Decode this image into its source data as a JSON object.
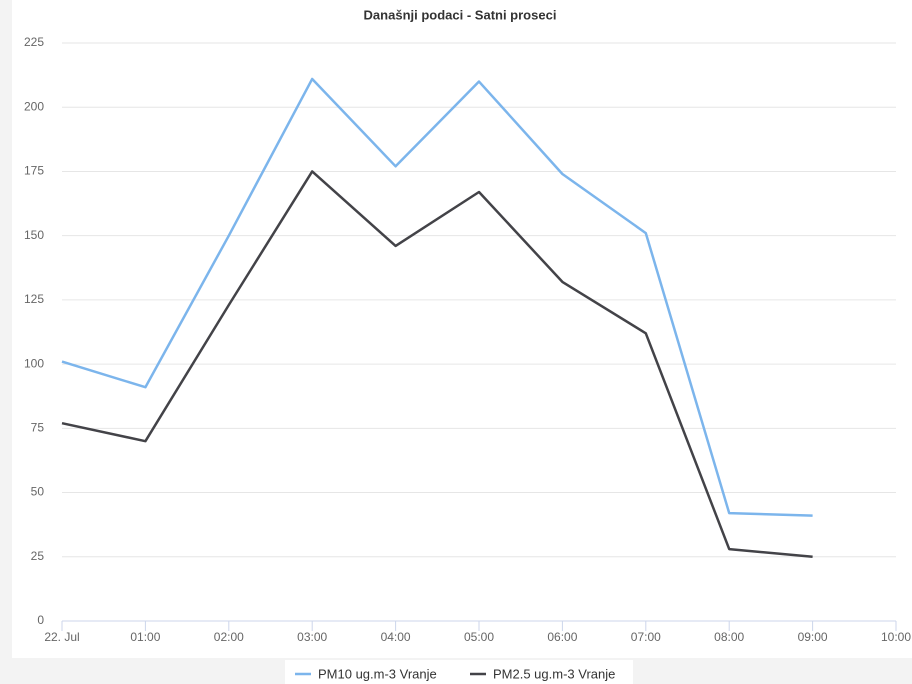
{
  "chart_data": {
    "type": "line",
    "title": "Današnji podaci - Satni proseci",
    "categories": [
      "22. Jul",
      "01:00",
      "02:00",
      "03:00",
      "04:00",
      "05:00",
      "06:00",
      "07:00",
      "08:00",
      "09:00",
      "10:00"
    ],
    "series": [
      {
        "name": "PM10 ug.m-3 Vranje",
        "color": "#7cb5ec",
        "values": [
          101,
          91,
          150,
          211,
          177,
          210,
          174,
          151,
          42,
          41,
          null
        ]
      },
      {
        "name": "PM2.5 ug.m-3 Vranje",
        "color": "#434348",
        "values": [
          77,
          70,
          123,
          175,
          146,
          167,
          132,
          112,
          28,
          25,
          null
        ]
      }
    ],
    "ylim": [
      0,
      225
    ],
    "yticks": [
      0,
      25,
      50,
      75,
      100,
      125,
      150,
      175,
      200,
      225
    ],
    "grid": true
  }
}
